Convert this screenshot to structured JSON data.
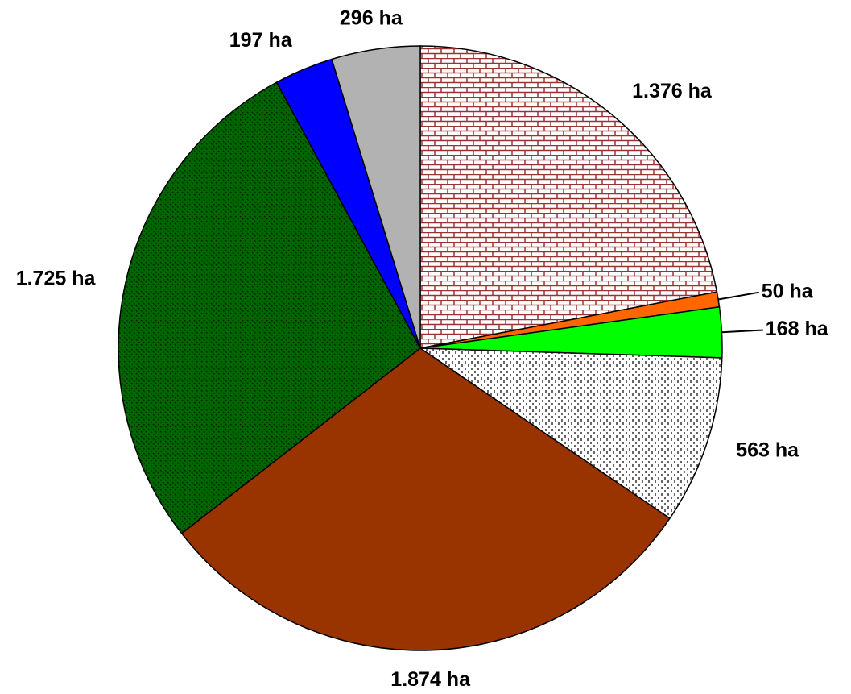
{
  "chart_data": {
    "type": "pie",
    "categories": [
      null,
      null,
      null,
      null,
      null,
      null,
      null,
      null
    ],
    "values": [
      1376,
      50,
      168,
      563,
      1874,
      1725,
      197,
      296
    ],
    "value_labels": [
      "1.376 ha",
      "50 ha",
      "168 ha",
      "563 ha",
      "1.874 ha",
      "1.725 ha",
      "197 ha",
      "296 ha"
    ],
    "colors": [
      "#993333",
      "#ff6600",
      "#00ff00",
      "#ffffff",
      "#993300",
      "#006600",
      "#0000ff",
      "#b2b2b2"
    ]
  }
}
